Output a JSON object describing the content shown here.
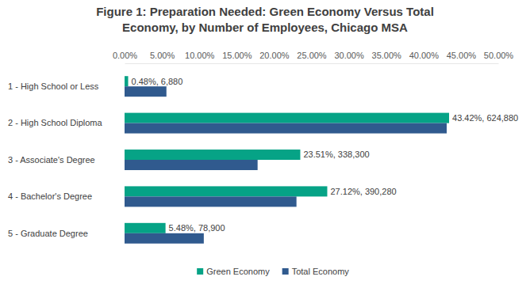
{
  "chart_data": {
    "type": "bar",
    "orientation": "horizontal",
    "title": [
      "Figure 1: Preparation Needed: Green Economy Versus Total",
      "Economy, by Number of Employees, Chicago MSA"
    ],
    "categories": [
      "1 - High School or Less",
      "2 - High School Diploma",
      "3 - Associate's Degree",
      "4 - Bachelor's Degree",
      "5 - Graduate Degree"
    ],
    "series": [
      {
        "name": "Green Economy",
        "color": "#06a386",
        "values": [
          0.48,
          43.42,
          23.51,
          27.12,
          5.48
        ],
        "value_labels": [
          "0.48%, 6,880",
          "43.42%, 624,880",
          "23.51%, 338,300",
          "27.12%, 390,280",
          "5.48%, 78,900"
        ],
        "data_labels": true
      },
      {
        "name": "Total Economy",
        "color": "#305a8e",
        "values": [
          5.6,
          43.1,
          17.8,
          23.0,
          10.6
        ]
      }
    ],
    "xlim": [
      0,
      50
    ],
    "xticks": [
      {
        "value": 0,
        "label": "0.00%"
      },
      {
        "value": 5,
        "label": "5.00%"
      },
      {
        "value": 10,
        "label": "10.00%"
      },
      {
        "value": 15,
        "label": "15.00%"
      },
      {
        "value": 20,
        "label": "20.00%"
      },
      {
        "value": 25,
        "label": "25.00%"
      },
      {
        "value": 30,
        "label": "30.00%"
      },
      {
        "value": 35,
        "label": "35.00%"
      },
      {
        "value": 40,
        "label": "40.00%"
      },
      {
        "value": 45,
        "label": "45.00%"
      },
      {
        "value": 50,
        "label": "50.00%"
      }
    ],
    "grid": false,
    "legend": "bottom"
  }
}
